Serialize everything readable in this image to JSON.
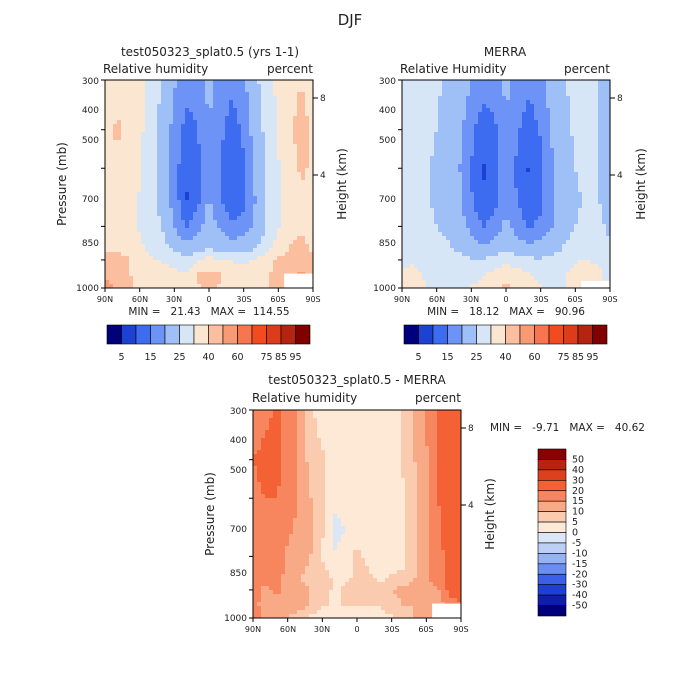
{
  "figure_title": "DJF",
  "colors": {
    "seq": [
      "#00007d",
      "#1d41d2",
      "#3e6cf0",
      "#6c93f5",
      "#9ec0f6",
      "#d7e6f6",
      "#fbe6d2",
      "#fbbfa0",
      "#f89a74",
      "#f7764f",
      "#f24b1f",
      "#dc3c1a",
      "#b52311",
      "#800000"
    ],
    "diff": [
      "#00007d",
      "#0e1ea8",
      "#1f3fd0",
      "#3a5fe8",
      "#6a8ef0",
      "#95b2f3",
      "#bcd0f5",
      "#dbe7f7",
      "#fde9d6",
      "#fbcbb0",
      "#f8a985",
      "#f7865e",
      "#f36134",
      "#dd401c",
      "#b8220f",
      "#8b0000"
    ]
  },
  "panels": [
    {
      "id": "model",
      "title": "test050323_splat0.5 (yrs 1-1)",
      "left_label": "Relative humidity",
      "right_label": "percent",
      "ylabel": "Pressure (mb)",
      "y2label": "Height (km)",
      "stats": "MIN =   21.43   MAX =  114.55"
    },
    {
      "id": "obs",
      "title": "MERRA",
      "left_label": "Relative Humidity",
      "right_label": "percent",
      "ylabel": "Pressure (mb)",
      "y2label": "Height (km)",
      "stats": "MIN =   18.12   MAX =   90.96"
    },
    {
      "id": "diff",
      "title": "test050323_splat0.5 - MERRA",
      "left_label": "Relative humidity",
      "right_label": "percent",
      "ylabel": "Pressure (mb)",
      "y2label": "Height (km)",
      "stats": "MIN =   -9.71   MAX =   40.62"
    }
  ],
  "colorbars": {
    "top_labels": [
      "5",
      "15",
      "25",
      "40",
      "60",
      "75",
      "85",
      "95"
    ],
    "diff_labels": [
      "50",
      "40",
      "30",
      "20",
      "15",
      "10",
      "5",
      "0",
      "-5",
      "-10",
      "-15",
      "-20",
      "-30",
      "-40",
      "-50"
    ]
  },
  "chart_data": [
    {
      "type": "heatmap",
      "title": "test050323_splat0.5 (yrs 1-1)",
      "variable": "Relative humidity",
      "units": "percent",
      "xlabel": "Latitude",
      "ylabel": "Pressure (mb)",
      "y2label": "Height (km)",
      "x_ticks": [
        "90N",
        "60N",
        "30N",
        "0",
        "30S",
        "60S",
        "90S"
      ],
      "y_ticks": [
        "300",
        "400",
        "500",
        "700",
        "850",
        "1000"
      ],
      "y2_ticks": [
        "8",
        "4"
      ],
      "x": [
        90,
        80,
        70,
        60,
        50,
        40,
        30,
        20,
        10,
        0,
        -10,
        -20,
        -30,
        -40,
        -50,
        -60,
        -70,
        -80,
        -90
      ],
      "y": [
        300,
        400,
        500,
        600,
        700,
        800,
        850,
        925,
        1000
      ],
      "z": [
        [
          78,
          82,
          85,
          80,
          72,
          58,
          42,
          30,
          32,
          44,
          34,
          28,
          36,
          56,
          70,
          78,
          82,
          85,
          80
        ],
        [
          82,
          86,
          84,
          78,
          68,
          52,
          34,
          20,
          24,
          40,
          28,
          18,
          28,
          48,
          66,
          76,
          84,
          88,
          84
        ],
        [
          80,
          84,
          82,
          76,
          66,
          50,
          30,
          16,
          20,
          38,
          24,
          14,
          22,
          42,
          62,
          74,
          82,
          86,
          84
        ],
        [
          78,
          82,
          80,
          74,
          66,
          54,
          32,
          14,
          20,
          42,
          26,
          16,
          22,
          40,
          60,
          72,
          80,
          84,
          82
        ],
        [
          78,
          80,
          80,
          74,
          68,
          58,
          38,
          24,
          34,
          50,
          36,
          26,
          30,
          44,
          62,
          74,
          80,
          84,
          80
        ],
        [
          84,
          84,
          82,
          78,
          72,
          66,
          58,
          48,
          54,
          62,
          56,
          50,
          54,
          60,
          72,
          80,
          86,
          88,
          84
        ],
        [
          90,
          88,
          86,
          80,
          76,
          74,
          70,
          66,
          74,
          80,
          76,
          74,
          72,
          76,
          82,
          86,
          90,
          94,
          88
        ],
        [
          94,
          90,
          86,
          82,
          80,
          80,
          78,
          78,
          86,
          88,
          86,
          82,
          80,
          80,
          84,
          88,
          92,
          96,
          90
        ],
        [
          98,
          94,
          88,
          82,
          80,
          78,
          78,
          80,
          84,
          86,
          84,
          82,
          80,
          80,
          84,
          88,
          92,
          96,
          92
        ]
      ],
      "levels": [
        5,
        15,
        25,
        40,
        60,
        75,
        85,
        95
      ],
      "min": 21.43,
      "max": 114.55
    },
    {
      "type": "heatmap",
      "title": "MERRA",
      "variable": "Relative Humidity",
      "units": "percent",
      "xlabel": "Latitude",
      "ylabel": "Pressure (mb)",
      "y2label": "Height (km)",
      "x_ticks": [
        "90N",
        "60N",
        "30N",
        "0",
        "30S",
        "60S",
        "90S"
      ],
      "y_ticks": [
        "300",
        "400",
        "500",
        "700",
        "850",
        "1000"
      ],
      "y2_ticks": [
        "8",
        "4"
      ],
      "x": [
        90,
        80,
        70,
        60,
        50,
        40,
        30,
        20,
        10,
        0,
        -10,
        -20,
        -30,
        -40,
        -50,
        -60,
        -70,
        -80,
        -90
      ],
      "y": [
        300,
        400,
        500,
        600,
        700,
        800,
        850,
        925,
        1000
      ],
      "z": [
        [
          62,
          64,
          64,
          62,
          58,
          52,
          40,
          30,
          32,
          44,
          34,
          28,
          34,
          50,
          60,
          62,
          62,
          60,
          58
        ],
        [
          62,
          64,
          62,
          60,
          54,
          44,
          28,
          18,
          22,
          38,
          26,
          18,
          26,
          42,
          56,
          62,
          62,
          60,
          58
        ],
        [
          62,
          64,
          62,
          58,
          52,
          40,
          24,
          14,
          18,
          36,
          22,
          14,
          22,
          38,
          54,
          60,
          62,
          60,
          58
        ],
        [
          62,
          64,
          62,
          58,
          52,
          42,
          26,
          16,
          20,
          38,
          24,
          16,
          22,
          36,
          52,
          58,
          62,
          60,
          58
        ],
        [
          62,
          64,
          62,
          60,
          56,
          48,
          34,
          24,
          30,
          44,
          32,
          24,
          28,
          40,
          54,
          60,
          62,
          62,
          58
        ],
        [
          66,
          68,
          66,
          64,
          62,
          58,
          50,
          44,
          50,
          56,
          50,
          46,
          48,
          54,
          62,
          66,
          68,
          66,
          62
        ],
        [
          72,
          74,
          70,
          66,
          64,
          64,
          62,
          62,
          68,
          72,
          68,
          64,
          62,
          64,
          70,
          74,
          76,
          72,
          66
        ],
        [
          76,
          78,
          74,
          70,
          68,
          70,
          72,
          74,
          80,
          82,
          80,
          76,
          72,
          70,
          74,
          78,
          80,
          78,
          70
        ],
        [
          78,
          80,
          76,
          72,
          72,
          74,
          76,
          78,
          84,
          86,
          84,
          80,
          76,
          72,
          74,
          78,
          82,
          80,
          72
        ]
      ],
      "levels": [
        5,
        15,
        25,
        40,
        60,
        75,
        85,
        95
      ],
      "min": 18.12,
      "max": 90.96
    },
    {
      "type": "heatmap",
      "title": "test050323_splat0.5 - MERRA",
      "variable": "Relative humidity",
      "units": "percent",
      "xlabel": "Latitude",
      "ylabel": "Pressure (mb)",
      "y2label": "Height (km)",
      "x_ticks": [
        "90N",
        "60N",
        "30N",
        "0",
        "30S",
        "60S",
        "90S"
      ],
      "y_ticks": [
        "300",
        "400",
        "500",
        "700",
        "850",
        "1000"
      ],
      "y2_ticks": [
        "8",
        "4"
      ],
      "x": [
        90,
        80,
        70,
        60,
        50,
        40,
        30,
        20,
        10,
        0,
        -10,
        -20,
        -30,
        -40,
        -50,
        -60,
        -70,
        -80,
        -90
      ],
      "y": [
        300,
        400,
        500,
        600,
        700,
        800,
        850,
        925,
        1000
      ],
      "z": [
        [
          16,
          18,
          21,
          18,
          14,
          6,
          2,
          0,
          0,
          0,
          0,
          0,
          2,
          6,
          10,
          16,
          20,
          25,
          22
        ],
        [
          20,
          22,
          22,
          18,
          14,
          8,
          6,
          2,
          2,
          2,
          2,
          0,
          2,
          6,
          10,
          14,
          22,
          28,
          26
        ],
        [
          18,
          20,
          20,
          18,
          14,
          10,
          6,
          2,
          2,
          2,
          2,
          0,
          0,
          4,
          8,
          14,
          20,
          26,
          26
        ],
        [
          16,
          18,
          18,
          16,
          14,
          12,
          6,
          -2,
          0,
          4,
          2,
          0,
          0,
          4,
          8,
          14,
          18,
          24,
          24
        ],
        [
          16,
          16,
          18,
          14,
          12,
          10,
          4,
          0,
          4,
          6,
          4,
          2,
          2,
          4,
          8,
          14,
          18,
          22,
          22
        ],
        [
          18,
          16,
          16,
          14,
          10,
          8,
          8,
          4,
          4,
          6,
          6,
          4,
          6,
          6,
          10,
          14,
          18,
          22,
          22
        ],
        [
          18,
          14,
          16,
          14,
          12,
          10,
          8,
          4,
          6,
          8,
          8,
          10,
          10,
          12,
          12,
          12,
          14,
          22,
          22
        ],
        [
          18,
          12,
          12,
          12,
          12,
          10,
          6,
          4,
          6,
          6,
          6,
          6,
          8,
          10,
          10,
          10,
          12,
          18,
          20
        ],
        [
          20,
          14,
          12,
          10,
          8,
          4,
          2,
          2,
          0,
          0,
          0,
          2,
          4,
          8,
          10,
          10,
          10,
          16,
          20
        ]
      ],
      "levels": [
        -50,
        -40,
        -30,
        -20,
        -15,
        -10,
        -5,
        0,
        5,
        10,
        15,
        20,
        30,
        40,
        50
      ],
      "min": -9.71,
      "max": 40.62
    }
  ]
}
